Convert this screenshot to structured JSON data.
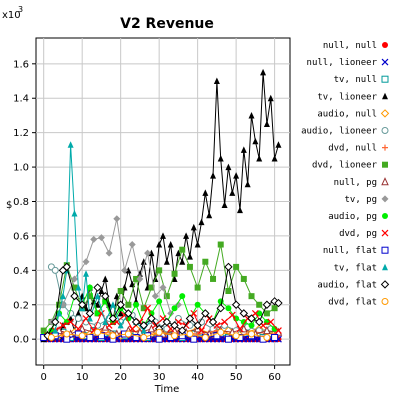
{
  "chart_data": {
    "type": "line",
    "title": "V2 Revenue",
    "xlabel": "Time",
    "ylabel": "$",
    "y_multiplier_label": "x10",
    "y_multiplier_exp": "3",
    "xlim": [
      -2,
      64
    ],
    "ylim": [
      -0.15,
      1.75
    ],
    "x_ticks": [
      0,
      10,
      20,
      30,
      40,
      50,
      60
    ],
    "y_ticks": [
      0.0,
      0.2,
      0.4,
      0.6,
      0.8,
      1.0,
      1.2,
      1.4,
      1.6
    ],
    "y_tick_labels": [
      "0.0",
      "0.2",
      "0.4",
      "0.6",
      "0.8",
      "1.0",
      "1.2",
      "1.4",
      "1.6"
    ],
    "grid": true,
    "legend_position": "right",
    "series": [
      {
        "name": "null, null",
        "color": "#ff0000",
        "marker": "circle-filled",
        "x": [
          0,
          1,
          2,
          3,
          4,
          5,
          6,
          7,
          8,
          9,
          10,
          11,
          12,
          13,
          14,
          15,
          16,
          17,
          18,
          19,
          20,
          21,
          22,
          23,
          24,
          25,
          26,
          27,
          28,
          29,
          30,
          31,
          32,
          33,
          34,
          35,
          36,
          37,
          38,
          39,
          40,
          41,
          42,
          43,
          44,
          45,
          46,
          47,
          48,
          49,
          50,
          51,
          52,
          53,
          54,
          55,
          56,
          57,
          58,
          59,
          60,
          61
        ],
        "y": [
          0,
          0,
          0,
          0,
          0,
          0,
          0,
          0,
          0,
          0,
          0,
          0,
          0,
          0,
          0,
          0,
          0,
          0,
          0,
          0,
          0,
          0,
          0,
          0,
          0,
          0,
          0,
          0,
          0,
          0,
          0,
          0,
          0,
          0,
          0,
          0,
          0,
          0,
          0,
          0,
          0,
          0,
          0,
          0,
          0,
          0,
          0,
          0,
          0,
          0,
          0,
          0,
          0,
          0,
          0,
          0,
          0,
          0,
          0,
          0,
          0,
          0
        ]
      },
      {
        "name": "null, lioneer",
        "color": "#0000cc",
        "marker": "x",
        "x": [
          0,
          1,
          2,
          3,
          4,
          5,
          6,
          7,
          8,
          9,
          10,
          11,
          12,
          13,
          14,
          15,
          16,
          17,
          18,
          19,
          20,
          21,
          22,
          23,
          24,
          25,
          26,
          27,
          28,
          29,
          30,
          31,
          32,
          33,
          34,
          35,
          36,
          37,
          38,
          39,
          40,
          41,
          42,
          43,
          44,
          45,
          46,
          47,
          48,
          49,
          50,
          51,
          52,
          53,
          54,
          55,
          56,
          57,
          58,
          59,
          60,
          61
        ],
        "y": [
          0,
          0,
          0,
          0,
          0,
          0,
          0,
          0,
          0,
          0,
          0,
          0,
          0,
          0,
          0,
          0,
          0,
          0,
          0,
          0,
          0,
          0,
          0,
          0,
          0,
          0,
          0,
          0,
          0,
          0,
          0,
          0,
          0,
          0,
          0,
          0,
          0,
          0,
          0,
          0,
          0,
          0,
          0,
          0,
          0,
          0,
          0,
          0,
          0,
          0,
          0,
          0,
          0,
          0,
          0,
          0,
          0,
          0,
          0,
          0,
          0,
          0
        ]
      },
      {
        "name": "tv, null",
        "color": "#009999",
        "marker": "square-open",
        "x": [
          3,
          5,
          7,
          9,
          11,
          13,
          15,
          18,
          21,
          24,
          27,
          30,
          33,
          36,
          39,
          42,
          45,
          48,
          51,
          54,
          57,
          60
        ],
        "y": [
          0.02,
          0.04,
          0.01,
          0.03,
          0.02,
          0.05,
          0.01,
          0.03,
          0.02,
          0.04,
          0.01,
          0.03,
          0.02,
          0.01,
          0.03,
          0.02,
          0.04,
          0.01,
          0.03,
          0.02,
          0.01,
          0.02
        ]
      },
      {
        "name": "tv, lioneer",
        "color": "#000000",
        "marker": "triangle-filled",
        "x": [
          0,
          1,
          2,
          3,
          4,
          5,
          6,
          7,
          8,
          9,
          10,
          11,
          12,
          13,
          14,
          15,
          16,
          17,
          18,
          19,
          20,
          21,
          22,
          23,
          24,
          25,
          26,
          27,
          28,
          29,
          30,
          31,
          32,
          33,
          34,
          35,
          36,
          37,
          38,
          39,
          40,
          41,
          42,
          43,
          44,
          45,
          46,
          47,
          48,
          49,
          50,
          51,
          52,
          53,
          54,
          55,
          56,
          57,
          58,
          59,
          60,
          61
        ],
        "y": [
          0.0,
          0.03,
          0.01,
          0.05,
          0.02,
          0.08,
          0.1,
          0.12,
          0.05,
          0.15,
          0.25,
          0.18,
          0.3,
          0.22,
          0.2,
          0.28,
          0.35,
          0.2,
          0.1,
          0.25,
          0.15,
          0.3,
          0.4,
          0.32,
          0.22,
          0.38,
          0.45,
          0.3,
          0.5,
          0.35,
          0.55,
          0.6,
          0.45,
          0.55,
          0.35,
          0.5,
          0.45,
          0.6,
          0.48,
          0.65,
          0.55,
          0.68,
          0.85,
          0.72,
          0.95,
          1.5,
          1.05,
          0.78,
          1.0,
          0.85,
          0.95,
          0.75,
          1.1,
          0.9,
          1.3,
          1.15,
          1.05,
          1.55,
          1.25,
          1.4,
          1.05,
          1.13
        ]
      },
      {
        "name": "audio, null",
        "color": "#ff9900",
        "marker": "diamond-open",
        "x": [
          4,
          8,
          12,
          16,
          20,
          24,
          28,
          32,
          36,
          40,
          44,
          48,
          52,
          56,
          60
        ],
        "y": [
          0.02,
          0.04,
          0.03,
          0.05,
          0.02,
          0.06,
          0.03,
          0.05,
          0.04,
          0.06,
          0.03,
          0.05,
          0.04,
          0.06,
          0.03
        ]
      },
      {
        "name": "audio, lioneer",
        "color": "#669999",
        "marker": "circle-open",
        "x": [
          2,
          3,
          5,
          7,
          9,
          11,
          14,
          17,
          20,
          23,
          26,
          29,
          32,
          35,
          38,
          41,
          44,
          47,
          50,
          53,
          56,
          59
        ],
        "y": [
          0.42,
          0.4,
          0.2,
          0.15,
          0.12,
          0.1,
          0.08,
          0.12,
          0.1,
          0.14,
          0.08,
          0.1,
          0.06,
          0.12,
          0.08,
          0.1,
          0.06,
          0.08,
          0.05,
          0.07,
          0.05,
          0.06
        ]
      },
      {
        "name": "dvd, null",
        "color": "#ff6633",
        "marker": "plus",
        "x": [
          5,
          10,
          15,
          20,
          25,
          30,
          35,
          40,
          45,
          50,
          55,
          60
        ],
        "y": [
          0.03,
          0.02,
          0.04,
          0.03,
          0.05,
          0.02,
          0.04,
          0.03,
          0.05,
          0.02,
          0.04,
          0.03
        ]
      },
      {
        "name": "dvd, lioneer",
        "color": "#44aa22",
        "marker": "square-filled",
        "x": [
          0,
          2,
          4,
          6,
          8,
          10,
          12,
          14,
          16,
          18,
          20,
          22,
          24,
          26,
          28,
          30,
          32,
          34,
          36,
          38,
          40,
          42,
          44,
          46,
          48,
          50,
          52,
          54,
          56,
          58,
          60
        ],
        "y": [
          0.05,
          0.1,
          0.2,
          0.43,
          0.3,
          0.18,
          0.25,
          0.15,
          0.22,
          0.12,
          0.28,
          0.2,
          0.35,
          0.18,
          0.3,
          0.4,
          0.25,
          0.38,
          0.52,
          0.42,
          0.3,
          0.45,
          0.35,
          0.55,
          0.28,
          0.42,
          0.35,
          0.25,
          0.2,
          0.15,
          0.18
        ]
      },
      {
        "name": "null, pg",
        "color": "#993333",
        "marker": "triangle-open",
        "x": [
          1,
          4,
          7,
          10,
          13,
          16,
          19,
          22,
          25,
          28,
          31,
          34,
          37,
          40,
          43,
          46,
          49,
          52,
          55,
          58,
          61
        ],
        "y": [
          0.02,
          0.05,
          0.03,
          0.06,
          0.04,
          0.07,
          0.03,
          0.05,
          0.04,
          0.06,
          0.03,
          0.05,
          0.04,
          0.06,
          0.03,
          0.05,
          0.04,
          0.06,
          0.03,
          0.05,
          0.04
        ]
      },
      {
        "name": "tv, pg",
        "color": "#999999",
        "marker": "diamond-filled",
        "x": [
          2,
          5,
          8,
          11,
          13,
          15,
          17,
          19,
          21,
          23,
          25,
          27,
          29,
          31,
          33,
          35
        ],
        "y": [
          0.1,
          0.2,
          0.35,
          0.45,
          0.58,
          0.59,
          0.5,
          0.7,
          0.4,
          0.55,
          0.35,
          0.5,
          0.25,
          0.3,
          0.15,
          0.2
        ]
      },
      {
        "name": "audio, pg",
        "color": "#00ee00",
        "marker": "circle-filled",
        "x": [
          0,
          2,
          4,
          6,
          8,
          10,
          12,
          14,
          16,
          18,
          20,
          22,
          24,
          26,
          28,
          30,
          32,
          34,
          36,
          38,
          40,
          42,
          44,
          46,
          48,
          50,
          52,
          54,
          56,
          58,
          60
        ],
        "y": [
          0.02,
          0.05,
          0.15,
          0.1,
          0.25,
          0.2,
          0.3,
          0.15,
          0.22,
          0.1,
          0.18,
          0.12,
          0.2,
          0.08,
          0.15,
          0.22,
          0.1,
          0.18,
          0.25,
          0.12,
          0.2,
          0.15,
          0.1,
          0.22,
          0.18,
          0.12,
          0.1,
          0.08,
          0.15,
          0.1,
          0.06
        ]
      },
      {
        "name": "dvd, pg",
        "color": "#ff0000",
        "marker": "x",
        "x": [
          1,
          3,
          5,
          7,
          9,
          11,
          13,
          15,
          17,
          19,
          21,
          23,
          25,
          27,
          29,
          31,
          33,
          35,
          37,
          39,
          41,
          43,
          45,
          47,
          49,
          51,
          53,
          55,
          57,
          59,
          61
        ],
        "y": [
          0.02,
          0.05,
          0.08,
          0.1,
          0.06,
          0.12,
          0.05,
          0.15,
          0.08,
          0.1,
          0.14,
          0.06,
          0.1,
          0.18,
          0.08,
          0.12,
          0.06,
          0.1,
          0.08,
          0.15,
          0.05,
          0.12,
          0.08,
          0.1,
          0.14,
          0.06,
          0.12,
          0.15,
          0.08,
          0.1,
          0.05
        ]
      },
      {
        "name": "null, flat",
        "color": "#0000cc",
        "marker": "square-open",
        "x": [
          0,
          3,
          6,
          9,
          12,
          15,
          18,
          21,
          24,
          27,
          30,
          33,
          36,
          39,
          42,
          45,
          48,
          51,
          54,
          57,
          60
        ],
        "y": [
          0.01,
          0.02,
          0.0,
          0.03,
          0.01,
          0.02,
          0.0,
          0.03,
          0.01,
          0.02,
          0.0,
          0.01,
          0.02,
          0.0,
          0.01,
          0.02,
          0.0,
          0.01,
          0.02,
          0.0,
          0.01
        ]
      },
      {
        "name": "tv, flat",
        "color": "#00aaaa",
        "marker": "triangle-filled",
        "x": [
          3,
          4,
          5,
          6,
          7,
          8,
          9,
          10,
          11,
          12,
          14,
          16,
          18,
          20,
          22,
          24,
          26,
          28,
          30
        ],
        "y": [
          0.05,
          0.15,
          0.25,
          0.4,
          1.13,
          0.73,
          0.3,
          0.18,
          0.38,
          0.12,
          0.25,
          0.1,
          0.2,
          0.08,
          0.15,
          0.1,
          0.05,
          0.12,
          0.06
        ]
      },
      {
        "name": "audio, flat",
        "color": "#000000",
        "marker": "diamond-open",
        "x": [
          1,
          3,
          5,
          6,
          8,
          10,
          12,
          14,
          16,
          18,
          20,
          22,
          24,
          26,
          28,
          30,
          32,
          34,
          36,
          38,
          40,
          42,
          44,
          46,
          48,
          50,
          52,
          54,
          56,
          58,
          60,
          61
        ],
        "y": [
          0.02,
          0.1,
          0.4,
          0.42,
          0.25,
          0.2,
          0.15,
          0.3,
          0.25,
          0.12,
          0.2,
          0.15,
          0.1,
          0.08,
          0.12,
          0.06,
          0.1,
          0.08,
          0.05,
          0.12,
          0.08,
          0.15,
          0.1,
          0.18,
          0.42,
          0.2,
          0.15,
          0.12,
          0.1,
          0.2,
          0.22,
          0.21
        ]
      },
      {
        "name": "dvd, flat",
        "color": "#ff9900",
        "marker": "circle-open",
        "x": [
          2,
          6,
          10,
          14,
          18,
          22,
          26,
          30,
          34,
          38,
          42,
          46,
          50,
          54,
          58
        ],
        "y": [
          0.01,
          0.03,
          0.02,
          0.04,
          0.02,
          0.03,
          0.01,
          0.04,
          0.02,
          0.03,
          0.01,
          0.04,
          0.02,
          0.03,
          0.01
        ]
      }
    ]
  }
}
